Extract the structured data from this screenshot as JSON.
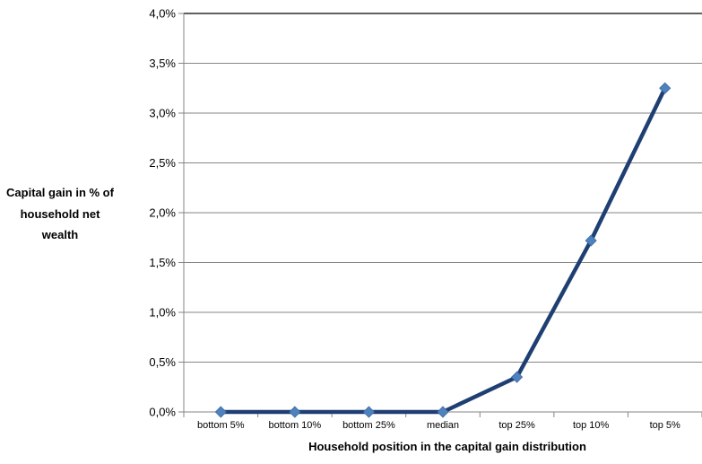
{
  "chart_data": {
    "type": "line",
    "categories": [
      "bottom 5%",
      "bottom 10%",
      "bottom 25%",
      "median",
      "top 25%",
      "top 10%",
      "top 5%"
    ],
    "series": [
      {
        "values": [
          0.0,
          0.0,
          0.0,
          0.0,
          0.35,
          1.72,
          3.25
        ]
      }
    ],
    "xlabel": "Household position in the capital gain distribution",
    "ylabel_lines": [
      "Capital gain in % of",
      "household net",
      "wealth"
    ],
    "ylim": [
      0,
      4.0
    ],
    "yticks": [
      0.0,
      0.5,
      1.0,
      1.5,
      2.0,
      2.5,
      3.0,
      3.5,
      4.0
    ],
    "ytick_labels": [
      "0,0%",
      "0,5%",
      "1,0%",
      "1,5%",
      "2,0%",
      "2,5%",
      "3,0%",
      "3,5%",
      "4,0%"
    ],
    "grid": true,
    "colors": {
      "line": "#1f3f73",
      "marker": "#4f81bd",
      "grid": "#868686"
    }
  }
}
